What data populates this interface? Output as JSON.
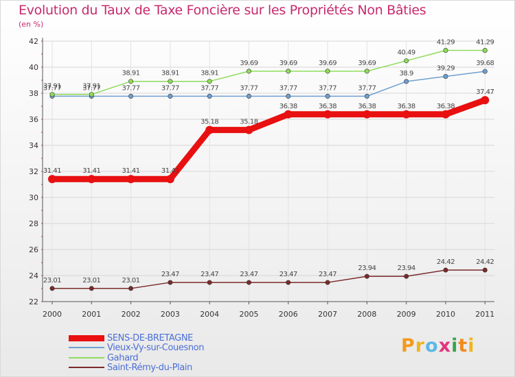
{
  "header": {
    "title": "Evolution du Taux de Taxe Foncière sur les Propriétés Non Bâties",
    "unit": "(en %)"
  },
  "chart_data": {
    "type": "line",
    "title": "Evolution du Taux de Taxe Foncière sur les Propriétés Non Bâties",
    "ylabel": "(en %)",
    "xlabel": "",
    "ylim": [
      22,
      42
    ],
    "yticks": [
      22,
      24,
      26,
      28,
      30,
      32,
      34,
      36,
      38,
      40,
      42
    ],
    "categories": [
      "2000",
      "2001",
      "2002",
      "2003",
      "2004",
      "2005",
      "2006",
      "2007",
      "2008",
      "2009",
      "2010",
      "2011"
    ],
    "series": [
      {
        "name": "Saint-Rémy-du-Plain",
        "color": "#7a2a2a",
        "values": [
          23.01,
          23.01,
          23.01,
          23.47,
          23.47,
          23.47,
          23.47,
          23.47,
          23.94,
          23.94,
          24.42,
          24.42
        ],
        "labels": [
          "23.01",
          "23.01",
          "23.01",
          "23.47",
          "23.47",
          "23.47",
          "23.47",
          "23.47",
          "23.94",
          "23.94",
          "24.42",
          "24.42"
        ]
      },
      {
        "name": "Vieux-Vy-sur-Couesnon",
        "color": "#6f9fd0",
        "values": [
          37.77,
          37.77,
          37.77,
          37.77,
          37.77,
          37.77,
          37.77,
          37.77,
          37.77,
          38.9,
          39.29,
          39.68
        ],
        "labels": [
          "37.77",
          "37.77",
          "37.77",
          "37.77",
          "37.77",
          "37.77",
          "37.77",
          "37.77",
          "37.77",
          "38.9",
          "39.29",
          "39.68"
        ]
      },
      {
        "name": "Gahard",
        "color": "#8fdc5a",
        "values": [
          37.91,
          37.91,
          38.91,
          38.91,
          38.91,
          39.69,
          39.69,
          39.69,
          39.69,
          40.49,
          41.29,
          41.29
        ],
        "labels": [
          "37.91",
          "37.91",
          "38.91",
          "38.91",
          "38.91",
          "39.69",
          "39.69",
          "39.69",
          "39.69",
          "40.49",
          "41.29",
          "41.29"
        ]
      },
      {
        "name": "SENS-DE-BRETAGNE",
        "color": "#e81010",
        "values": [
          31.41,
          31.41,
          31.41,
          31.41,
          35.18,
          35.18,
          36.38,
          36.38,
          36.38,
          36.38,
          36.38,
          37.47
        ],
        "labels": [
          "31.41",
          "31.41",
          "31.41",
          "31.41",
          "35.18",
          "35.18",
          "36.38",
          "36.38",
          "36.38",
          "36.38",
          "36.38",
          "37.47"
        ]
      }
    ],
    "legend": {
      "placement": "bottom-left",
      "entries": [
        "SENS-DE-BRETAGNE",
        "Vieux-Vy-sur-Couesnon",
        "Gahard",
        "Saint-Rémy-du-Plain"
      ]
    }
  },
  "branding": {
    "logo_letters": [
      "P",
      "r",
      "o",
      "x",
      "i",
      "t",
      "i"
    ],
    "logo_colors": [
      "#f39a1e",
      "#f0b51d",
      "#5bb8e8",
      "#e6337b",
      "#3aa34a",
      "#f28a1c",
      "#f0b51d"
    ]
  }
}
